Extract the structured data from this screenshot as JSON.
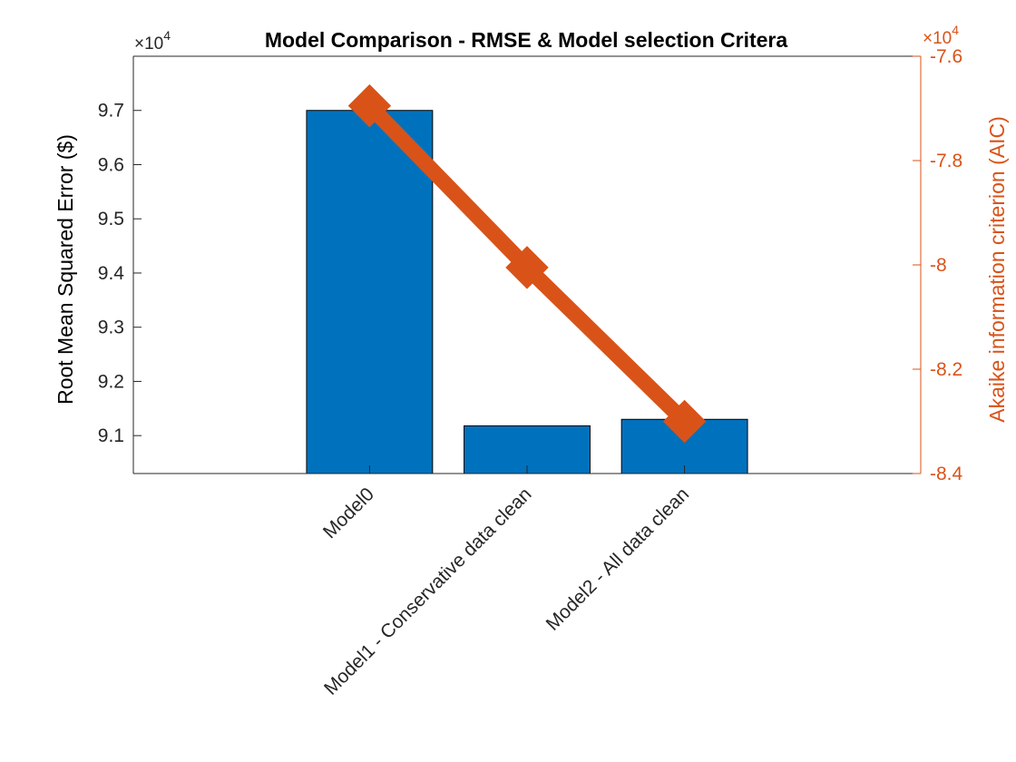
{
  "chart_data": {
    "type": "bar",
    "title": "Model Comparison - RMSE & Model selection Critera",
    "categories": [
      "Model0",
      "Model1 - Conservative data clean",
      "Model2 - All data clean"
    ],
    "left_axis": {
      "label": "Root Mean Squared Error ($)",
      "multiplier": "×10",
      "exponent": "4",
      "ticks": [
        "9.1",
        "9.2",
        "9.3",
        "9.4",
        "9.5",
        "9.6",
        "9.7"
      ],
      "tick_values": [
        91000,
        92000,
        93000,
        94000,
        95000,
        96000,
        97000
      ],
      "ylim": [
        90300,
        98000
      ]
    },
    "right_axis": {
      "label": "Akaike information criterion (AIC)",
      "multiplier": "×10",
      "exponent": "4",
      "ticks": [
        "-7.6",
        "-7.8",
        "-8",
        "-8.2",
        "-8.4"
      ],
      "tick_values": [
        -76000,
        -78000,
        -80000,
        -82000,
        -84000
      ],
      "ylim": [
        -84000,
        -76000
      ],
      "color": "#D95319"
    },
    "series": [
      {
        "name": "RMSE",
        "type": "bar",
        "axis": "left",
        "color": "#0072BD",
        "values": [
          97000,
          91180,
          91300
        ]
      },
      {
        "name": "AIC",
        "type": "line",
        "axis": "right",
        "color": "#D95319",
        "marker": "diamond",
        "values": [
          -76950,
          -80050,
          -83000
        ]
      }
    ],
    "grid": false,
    "legend": "none"
  }
}
